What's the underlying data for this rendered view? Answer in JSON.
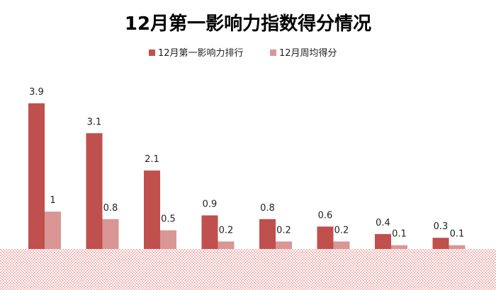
{
  "chart_data": {
    "type": "bar",
    "title": "12月第一影响力指数得分情况",
    "legend_position": "top",
    "grid": false,
    "categories": [
      "",
      "",
      "",
      "",
      "",
      "",
      "",
      ""
    ],
    "series": [
      {
        "name": "12月第一影响力排行",
        "color": "#c0504d",
        "values": [
          3.9,
          3.1,
          2.1,
          0.9,
          0.8,
          0.6,
          0.4,
          0.3
        ]
      },
      {
        "name": "12月周均得分",
        "color": "#d99694",
        "values": [
          1,
          0.8,
          0.5,
          0.2,
          0.2,
          0.2,
          0.1,
          0.1
        ]
      }
    ],
    "data_labels": {
      "series_0": [
        "3.9",
        "3.1",
        "2.1",
        "0.9",
        "0.8",
        "0.6",
        "0.4",
        "0.3"
      ],
      "series_1": [
        "1",
        "0.8",
        "0.5",
        "0.2",
        "0.2",
        "0.2",
        "0.1",
        "0.1"
      ]
    },
    "ylim": [
      0,
      4.5
    ],
    "overlay_color": "#f4b8b8"
  }
}
